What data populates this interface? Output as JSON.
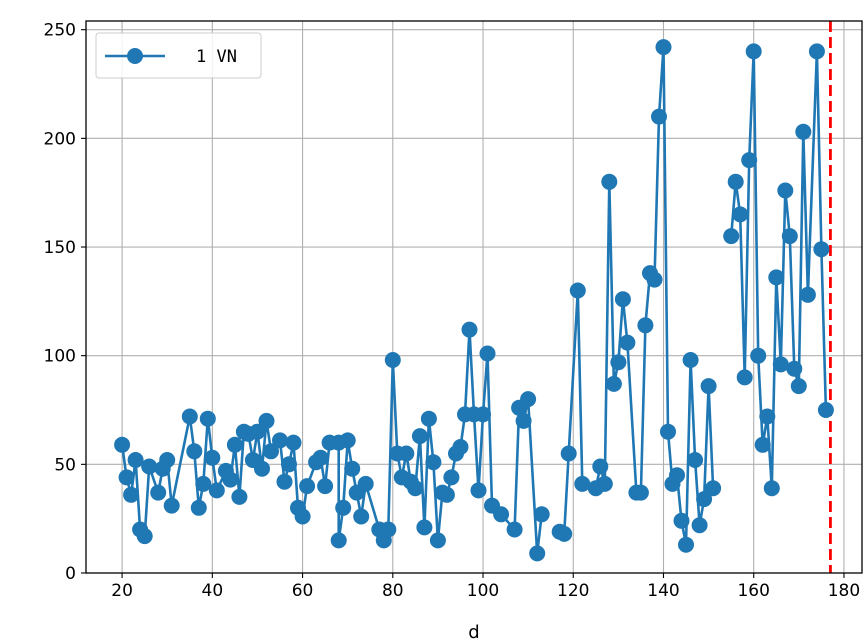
{
  "chart_data": {
    "type": "line",
    "xlabel": "d",
    "ylabel": "",
    "xlim": [
      12,
      184
    ],
    "ylim": [
      0,
      254
    ],
    "xticks": [
      20,
      40,
      60,
      80,
      100,
      120,
      140,
      160,
      180
    ],
    "yticks": [
      0,
      50,
      100,
      150,
      200,
      250
    ],
    "grid": true,
    "legend": {
      "location": "upper left"
    },
    "colors": {
      "series": "#1f77b4",
      "vline": "#ff0000"
    },
    "vline": {
      "x": 177,
      "style": "dashed"
    },
    "series": [
      {
        "name": "1 VN",
        "marker": "circle",
        "segments": [
          [
            [
              20,
              59
            ],
            [
              21,
              44
            ],
            [
              22,
              36
            ],
            [
              23,
              52
            ],
            [
              24,
              20
            ],
            [
              25,
              17
            ],
            [
              26,
              49
            ],
            [
              28,
              37
            ],
            [
              29,
              48
            ],
            [
              30,
              52
            ],
            [
              31,
              31
            ],
            [
              35,
              72
            ],
            [
              36,
              56
            ],
            [
              37,
              30
            ],
            [
              38,
              41
            ],
            [
              39,
              71
            ],
            [
              40,
              53
            ],
            [
              41,
              38
            ],
            [
              43,
              47
            ],
            [
              44,
              43
            ],
            [
              45,
              59
            ],
            [
              46,
              35
            ],
            [
              47,
              65
            ],
            [
              48,
              64
            ],
            [
              49,
              52
            ],
            [
              50,
              65
            ],
            [
              51,
              48
            ],
            [
              52,
              70
            ],
            [
              53,
              56
            ],
            [
              55,
              61
            ],
            [
              56,
              42
            ],
            [
              57,
              50
            ],
            [
              58,
              60
            ],
            [
              59,
              30
            ],
            [
              60,
              26
            ],
            [
              61,
              40
            ],
            [
              63,
              51
            ],
            [
              64,
              53
            ],
            [
              65,
              40
            ],
            [
              66,
              60
            ],
            [
              68,
              60
            ],
            [
              68,
              15
            ],
            [
              69,
              30
            ],
            [
              70,
              61
            ],
            [
              71,
              48
            ],
            [
              72,
              37
            ],
            [
              73,
              26
            ],
            [
              74,
              41
            ],
            [
              77,
              20
            ],
            [
              78,
              15
            ],
            [
              79,
              20
            ],
            [
              80,
              98
            ],
            [
              81,
              55
            ],
            [
              82,
              44
            ],
            [
              83,
              55
            ],
            [
              84,
              42
            ],
            [
              85,
              39
            ],
            [
              86,
              63
            ],
            [
              87,
              21
            ],
            [
              88,
              71
            ],
            [
              89,
              51
            ],
            [
              90,
              15
            ],
            [
              91,
              37
            ],
            [
              92,
              36
            ],
            [
              93,
              44
            ],
            [
              94,
              55
            ],
            [
              95,
              58
            ],
            [
              96,
              73
            ],
            [
              97,
              112
            ],
            [
              98,
              73
            ],
            [
              99,
              38
            ],
            [
              100,
              73
            ],
            [
              101,
              101
            ],
            [
              102,
              31
            ],
            [
              104,
              27
            ],
            [
              107,
              20
            ],
            [
              108,
              76
            ],
            [
              109,
              70
            ],
            [
              110,
              80
            ],
            [
              112,
              9
            ],
            [
              113,
              27
            ]
          ],
          [
            [
              117,
              19
            ],
            [
              118,
              18
            ],
            [
              119,
              55
            ],
            [
              121,
              130
            ],
            [
              122,
              41
            ],
            [
              125,
              39
            ],
            [
              126,
              49
            ],
            [
              127,
              41
            ],
            [
              128,
              180
            ],
            [
              129,
              87
            ],
            [
              130,
              97
            ],
            [
              131,
              126
            ],
            [
              132,
              106
            ],
            [
              134,
              37
            ],
            [
              135,
              37
            ],
            [
              136,
              114
            ],
            [
              137,
              138
            ],
            [
              138,
              135
            ],
            [
              139,
              210
            ],
            [
              140,
              242
            ],
            [
              141,
              65
            ],
            [
              142,
              41
            ],
            [
              143,
              45
            ],
            [
              144,
              24
            ],
            [
              145,
              13
            ],
            [
              146,
              98
            ],
            [
              147,
              52
            ],
            [
              148,
              22
            ],
            [
              149,
              34
            ],
            [
              150,
              86
            ],
            [
              151,
              39
            ]
          ],
          [
            [
              155,
              155
            ],
            [
              156,
              180
            ],
            [
              157,
              165
            ],
            [
              158,
              90
            ],
            [
              159,
              190
            ],
            [
              160,
              240
            ],
            [
              161,
              100
            ],
            [
              162,
              59
            ],
            [
              163,
              72
            ],
            [
              164,
              39
            ],
            [
              165,
              136
            ],
            [
              166,
              96
            ],
            [
              167,
              176
            ],
            [
              168,
              155
            ],
            [
              169,
              94
            ],
            [
              170,
              86
            ],
            [
              171,
              203
            ],
            [
              172,
              128
            ],
            [
              174,
              240
            ],
            [
              175,
              149
            ],
            [
              176,
              75
            ]
          ]
        ]
      }
    ]
  }
}
